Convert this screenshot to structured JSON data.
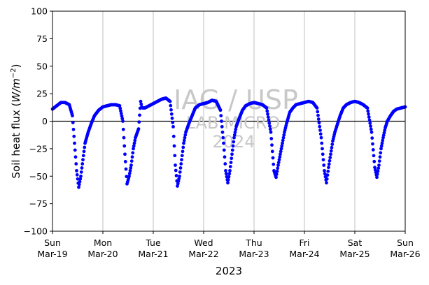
{
  "chart_data": {
    "type": "scatter",
    "xlabel": "2023",
    "ylabel_prefix": "Soil heat flux (",
    "ylabel_unit_main": "W/m",
    "ylabel_unit_exp": "−2",
    "ylabel_suffix": ")",
    "xlim": [
      "2023-03-19T00:00",
      "2023-03-26T00:00"
    ],
    "ylim": [
      -100,
      100
    ],
    "yticks": [
      -100,
      -75,
      -50,
      -25,
      0,
      25,
      50,
      75,
      100
    ],
    "xtick_labels": [
      {
        "dow": "Sun",
        "date": "Mar-19"
      },
      {
        "dow": "Mon",
        "date": "Mar-20"
      },
      {
        "dow": "Tue",
        "date": "Mar-21"
      },
      {
        "dow": "Wed",
        "date": "Mar-22"
      },
      {
        "dow": "Thu",
        "date": "Mar-23"
      },
      {
        "dow": "Fri",
        "date": "Mar-24"
      },
      {
        "dow": "Sat",
        "date": "Mar-25"
      },
      {
        "dow": "Sun",
        "date": "Mar-26"
      }
    ],
    "grid": "vertical only",
    "zero_line": true,
    "marker_color": "#0000ff",
    "watermark_lines": [
      "IAG / USP",
      "LAB MICRO",
      "2024"
    ],
    "series": [
      {
        "x": [
          "2023-03-19T00:00",
          "2023-03-19T02:00",
          "2023-03-19T04:00",
          "2023-03-19T06:00",
          "2023-03-19T08:00",
          "2023-03-19T09:30",
          "2023-03-19T10:30",
          "2023-03-19T11:30",
          "2023-03-19T12:30",
          "2023-03-19T13:30",
          "2023-03-19T14:30",
          "2023-03-19T15:30",
          "2023-03-19T17:00",
          "2023-03-19T18:30",
          "2023-03-19T20:00",
          "2023-03-19T22:00",
          "2023-03-20T00:00",
          "2023-03-20T02:00",
          "2023-03-20T04:00",
          "2023-03-20T06:00",
          "2023-03-20T08:00",
          "2023-03-20T09:30",
          "2023-03-20T10:30",
          "2023-03-20T11:30",
          "2023-03-20T12:30",
          "2023-03-20T13:30",
          "2023-03-20T14:30",
          "2023-03-20T15:30",
          "2023-03-20T17:00",
          "2023-03-20T18:00",
          "2023-03-20T18:30",
          "2023-03-20T19:00",
          "2023-03-20T20:00",
          "2023-03-20T22:00",
          "2023-03-21T00:00",
          "2023-03-21T02:00",
          "2023-03-21T04:00",
          "2023-03-21T06:00",
          "2023-03-21T08:00",
          "2023-03-21T09:30",
          "2023-03-21T10:30",
          "2023-03-21T11:30",
          "2023-03-21T12:30",
          "2023-03-21T13:30",
          "2023-03-21T14:30",
          "2023-03-21T15:30",
          "2023-03-21T17:00",
          "2023-03-21T18:30",
          "2023-03-21T20:00",
          "2023-03-21T22:00",
          "2023-03-22T00:00",
          "2023-03-22T02:00",
          "2023-03-22T04:00",
          "2023-03-22T06:00",
          "2023-03-22T08:00",
          "2023-03-22T09:30",
          "2023-03-22T10:30",
          "2023-03-22T11:30",
          "2023-03-22T12:30",
          "2023-03-22T13:30",
          "2023-03-22T14:30",
          "2023-03-22T15:30",
          "2023-03-22T17:00",
          "2023-03-22T18:30",
          "2023-03-22T20:00",
          "2023-03-22T22:00",
          "2023-03-23T00:00",
          "2023-03-23T02:00",
          "2023-03-23T04:00",
          "2023-03-23T06:00",
          "2023-03-23T08:00",
          "2023-03-23T09:30",
          "2023-03-23T10:30",
          "2023-03-23T11:30",
          "2023-03-23T12:30",
          "2023-03-23T13:30",
          "2023-03-23T14:30",
          "2023-03-23T15:30",
          "2023-03-23T17:00",
          "2023-03-23T18:30",
          "2023-03-23T20:00",
          "2023-03-23T22:00",
          "2023-03-24T00:00",
          "2023-03-24T02:00",
          "2023-03-24T04:00",
          "2023-03-24T06:00",
          "2023-03-24T08:00",
          "2023-03-24T09:30",
          "2023-03-24T10:30",
          "2023-03-24T11:30",
          "2023-03-24T12:30",
          "2023-03-24T13:30",
          "2023-03-24T14:30",
          "2023-03-24T15:30",
          "2023-03-24T17:00",
          "2023-03-24T18:30",
          "2023-03-24T20:00",
          "2023-03-24T22:00",
          "2023-03-25T00:00",
          "2023-03-25T02:00",
          "2023-03-25T04:00",
          "2023-03-25T06:00",
          "2023-03-25T08:00",
          "2023-03-25T09:30",
          "2023-03-25T10:30",
          "2023-03-25T11:30",
          "2023-03-25T12:30",
          "2023-03-25T13:30",
          "2023-03-25T14:30",
          "2023-03-25T15:30",
          "2023-03-25T17:00",
          "2023-03-25T18:30",
          "2023-03-25T20:00",
          "2023-03-25T22:00",
          "2023-03-26T00:00"
        ],
        "y": [
          11,
          14,
          17,
          17,
          15,
          5,
          -20,
          -45,
          -60,
          -50,
          -35,
          -20,
          -10,
          -2,
          5,
          10,
          13,
          14,
          15,
          15,
          14,
          0,
          -30,
          -57,
          -50,
          -40,
          -25,
          -15,
          -7,
          18,
          13,
          12,
          12,
          14,
          16,
          18,
          20,
          21,
          18,
          -5,
          -40,
          -59,
          -50,
          -35,
          -20,
          -10,
          -2,
          5,
          12,
          15,
          16,
          17,
          19,
          18,
          10,
          -20,
          -45,
          -56,
          -45,
          -30,
          -15,
          -5,
          3,
          10,
          14,
          16,
          17,
          16,
          15,
          12,
          -10,
          -45,
          -51,
          -40,
          -30,
          -20,
          -10,
          -2,
          8,
          12,
          15,
          16,
          17,
          18,
          17,
          12,
          -15,
          -45,
          -56,
          -42,
          -30,
          -18,
          -10,
          -4,
          5,
          12,
          15,
          17,
          18,
          17,
          15,
          12,
          -10,
          -42,
          -51,
          -40,
          -25,
          -15,
          -6,
          0,
          5,
          9,
          11,
          12,
          13
        ]
      }
    ]
  }
}
